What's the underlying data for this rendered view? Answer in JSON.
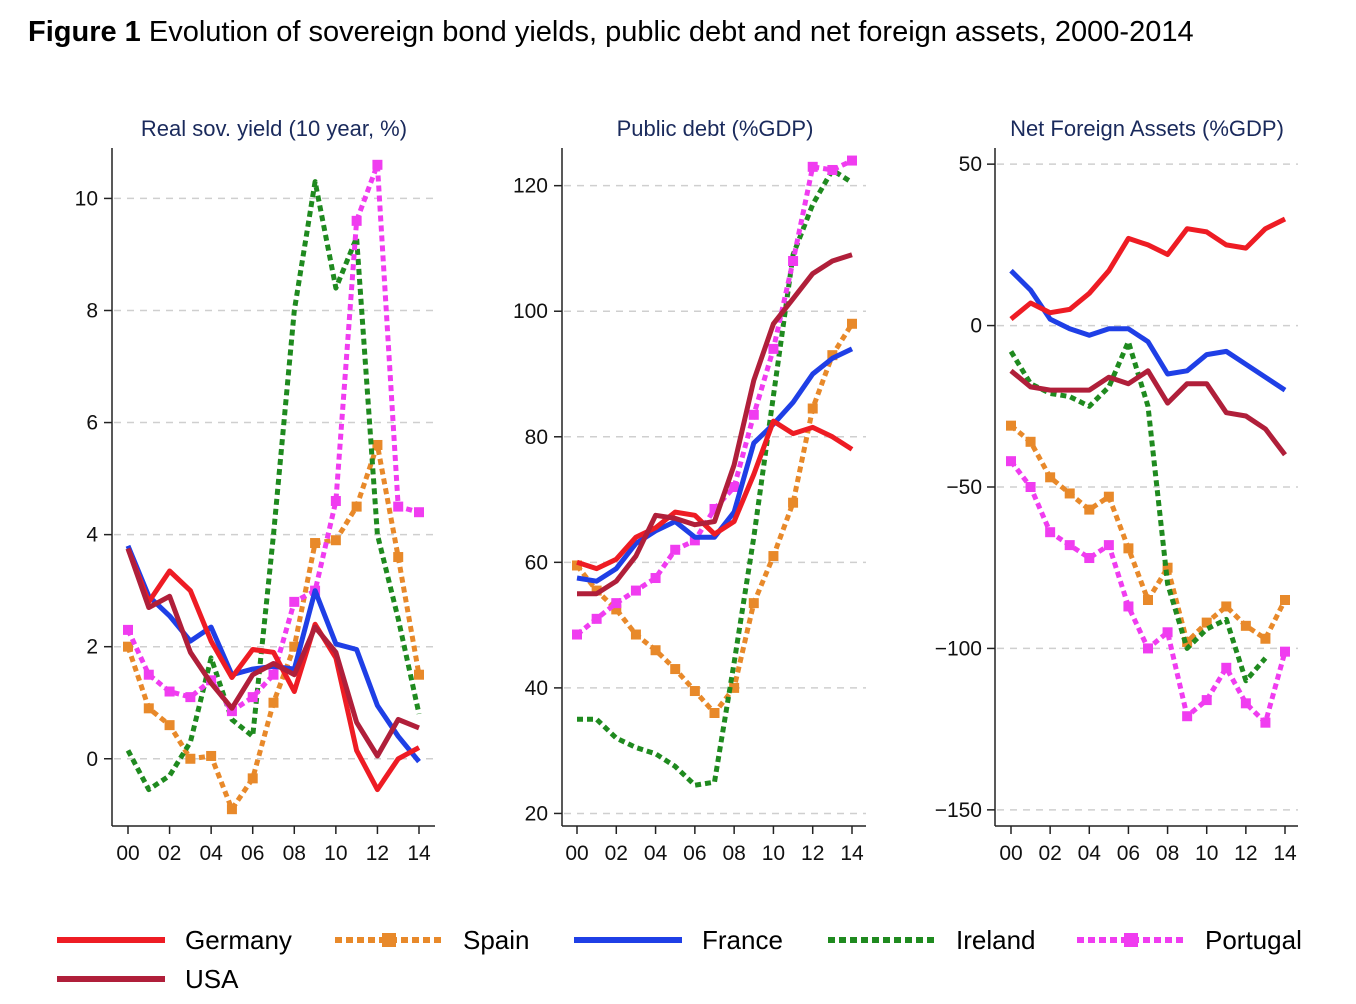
{
  "figure": {
    "label": "Figure 1",
    "title": "Evolution of sovereign bond yields, public debt and net foreign assets, 2000-2014"
  },
  "colors": {
    "Germany": "#ee1c24",
    "Spain": "#e8892a",
    "France": "#1f3fe6",
    "Ireland": "#1f8a1f",
    "Portugal": "#f03cf0",
    "USA": "#b01f3a",
    "title_text": "#1a2a5c",
    "grid": "#cfcfcf"
  },
  "legend": [
    {
      "name": "Germany",
      "style": "solid"
    },
    {
      "name": "Spain",
      "style": "dotted-marker"
    },
    {
      "name": "France",
      "style": "solid"
    },
    {
      "name": "Ireland",
      "style": "dotted"
    },
    {
      "name": "Portugal",
      "style": "dotted-marker"
    },
    {
      "name": "USA",
      "style": "solid"
    }
  ],
  "chart_data": [
    {
      "type": "line",
      "title": "Real sov. yield (10 year, %)",
      "x": [
        2000,
        2001,
        2002,
        2003,
        2004,
        2005,
        2006,
        2007,
        2008,
        2009,
        2010,
        2011,
        2012,
        2013,
        2014
      ],
      "xtick_labels": [
        "00",
        "02",
        "04",
        "06",
        "08",
        "10",
        "12",
        "14"
      ],
      "ylim": [
        -1.2,
        10.9
      ],
      "yticks": [
        0,
        2,
        4,
        6,
        8,
        10
      ],
      "series": [
        {
          "name": "Spain",
          "values": [
            2.0,
            0.9,
            0.6,
            0.0,
            0.05,
            -0.9,
            -0.35,
            1.0,
            2.0,
            3.85,
            3.9,
            4.5,
            5.6,
            3.6,
            1.5
          ]
        },
        {
          "name": "Ireland",
          "values": [
            0.15,
            -0.55,
            -0.3,
            0.3,
            1.8,
            0.7,
            0.4,
            4.0,
            8.0,
            10.3,
            8.4,
            9.3,
            4.0,
            2.5,
            0.8
          ]
        },
        {
          "name": "Portugal",
          "values": [
            2.3,
            1.5,
            1.2,
            1.1,
            1.4,
            0.85,
            1.1,
            1.5,
            2.8,
            3.0,
            4.6,
            9.6,
            10.6,
            4.5,
            4.4
          ]
        },
        {
          "name": "France",
          "values": [
            3.8,
            2.9,
            2.55,
            2.1,
            2.35,
            1.5,
            1.6,
            1.65,
            1.6,
            3.0,
            2.05,
            1.95,
            0.95,
            0.4,
            -0.05
          ]
        },
        {
          "name": "Germany",
          "values": [
            3.75,
            2.8,
            3.35,
            3.0,
            2.1,
            1.45,
            1.95,
            1.9,
            1.2,
            2.4,
            1.8,
            0.15,
            -0.55,
            0.0,
            0.2
          ]
        },
        {
          "name": "USA",
          "values": [
            3.75,
            2.7,
            2.9,
            1.9,
            1.35,
            0.9,
            1.5,
            1.7,
            1.5,
            2.35,
            1.9,
            0.65,
            0.05,
            0.7,
            0.55
          ]
        }
      ]
    },
    {
      "type": "line",
      "title": "Public debt (%GDP)",
      "x": [
        2000,
        2001,
        2002,
        2003,
        2004,
        2005,
        2006,
        2007,
        2008,
        2009,
        2010,
        2011,
        2012,
        2013,
        2014
      ],
      "xtick_labels": [
        "00",
        "02",
        "04",
        "06",
        "08",
        "10",
        "12",
        "14"
      ],
      "ylim": [
        18,
        126
      ],
      "yticks": [
        20,
        40,
        60,
        80,
        100,
        120
      ],
      "series": [
        {
          "name": "Spain",
          "values": [
            59.5,
            55.5,
            52.5,
            48.5,
            46.0,
            43.0,
            39.5,
            36.0,
            40.0,
            53.5,
            61.0,
            69.5,
            84.5,
            93.0,
            98.0
          ]
        },
        {
          "name": "Ireland",
          "values": [
            35.0,
            35.0,
            32.0,
            30.5,
            29.5,
            27.5,
            24.5,
            25.0,
            44.0,
            64.0,
            86.5,
            109.0,
            117.0,
            122.5,
            120.5
          ]
        },
        {
          "name": "Portugal",
          "values": [
            48.5,
            51.0,
            53.5,
            55.5,
            57.5,
            62.0,
            63.5,
            68.5,
            72.0,
            83.5,
            94.0,
            108.0,
            123.0,
            122.5,
            124.0
          ]
        },
        {
          "name": "France",
          "values": [
            57.5,
            57.0,
            59.0,
            63.0,
            65.0,
            66.5,
            64.0,
            64.0,
            68.0,
            79.0,
            82.0,
            85.5,
            90.0,
            92.5,
            94.0
          ]
        },
        {
          "name": "Germany",
          "values": [
            60.0,
            59.0,
            60.5,
            64.0,
            65.5,
            68.0,
            67.5,
            64.5,
            66.5,
            74.0,
            82.5,
            80.5,
            81.5,
            80.0,
            78.0
          ]
        },
        {
          "name": "USA",
          "values": [
            55.0,
            55.0,
            57.0,
            61.0,
            67.5,
            67.0,
            66.0,
            66.5,
            75.5,
            89.0,
            98.0,
            102.0,
            106.0,
            108.0,
            109.0
          ]
        }
      ]
    },
    {
      "type": "line",
      "title": "Net Foreign Assets (%GDP)",
      "x": [
        2000,
        2001,
        2002,
        2003,
        2004,
        2005,
        2006,
        2007,
        2008,
        2009,
        2010,
        2011,
        2012,
        2013,
        2014
      ],
      "xtick_labels": [
        "00",
        "02",
        "04",
        "06",
        "08",
        "10",
        "12",
        "14"
      ],
      "ylim": [
        -155,
        55
      ],
      "yticks": [
        50,
        0,
        -50,
        -100,
        -150
      ],
      "ytick_labels": [
        "50",
        "0",
        "−50",
        "−100",
        "−150"
      ],
      "series": [
        {
          "name": "Spain",
          "values": [
            -31,
            -36,
            -47,
            -52,
            -57,
            -53,
            -69,
            -85,
            -75,
            -98,
            -92,
            -87,
            -93,
            -97,
            -85
          ]
        },
        {
          "name": "Ireland",
          "values": [
            -8,
            -18,
            -21,
            -22,
            -25,
            -19,
            -5,
            -25,
            -80,
            -100,
            -94,
            -91,
            -110,
            -103,
            null
          ]
        },
        {
          "name": "Portugal",
          "values": [
            -42,
            -50,
            -64,
            -68,
            -72,
            -68,
            -87,
            -100,
            -95,
            -121,
            -116,
            -106,
            -117,
            -123,
            -101
          ]
        },
        {
          "name": "France",
          "values": [
            17,
            11,
            2,
            -1,
            -3,
            -1,
            -1,
            -5,
            -15,
            -14,
            -9,
            -8,
            -12,
            -16,
            -20
          ]
        },
        {
          "name": "Germany",
          "values": [
            2,
            7,
            4,
            5,
            10,
            17,
            27,
            25,
            22,
            30,
            29,
            25,
            24,
            30,
            33
          ]
        },
        {
          "name": "USA",
          "values": [
            -14,
            -19,
            -20,
            -20,
            -20,
            -16,
            -18,
            -14,
            -24,
            -18,
            -18,
            -27,
            -28,
            -32,
            -40
          ]
        }
      ]
    }
  ]
}
